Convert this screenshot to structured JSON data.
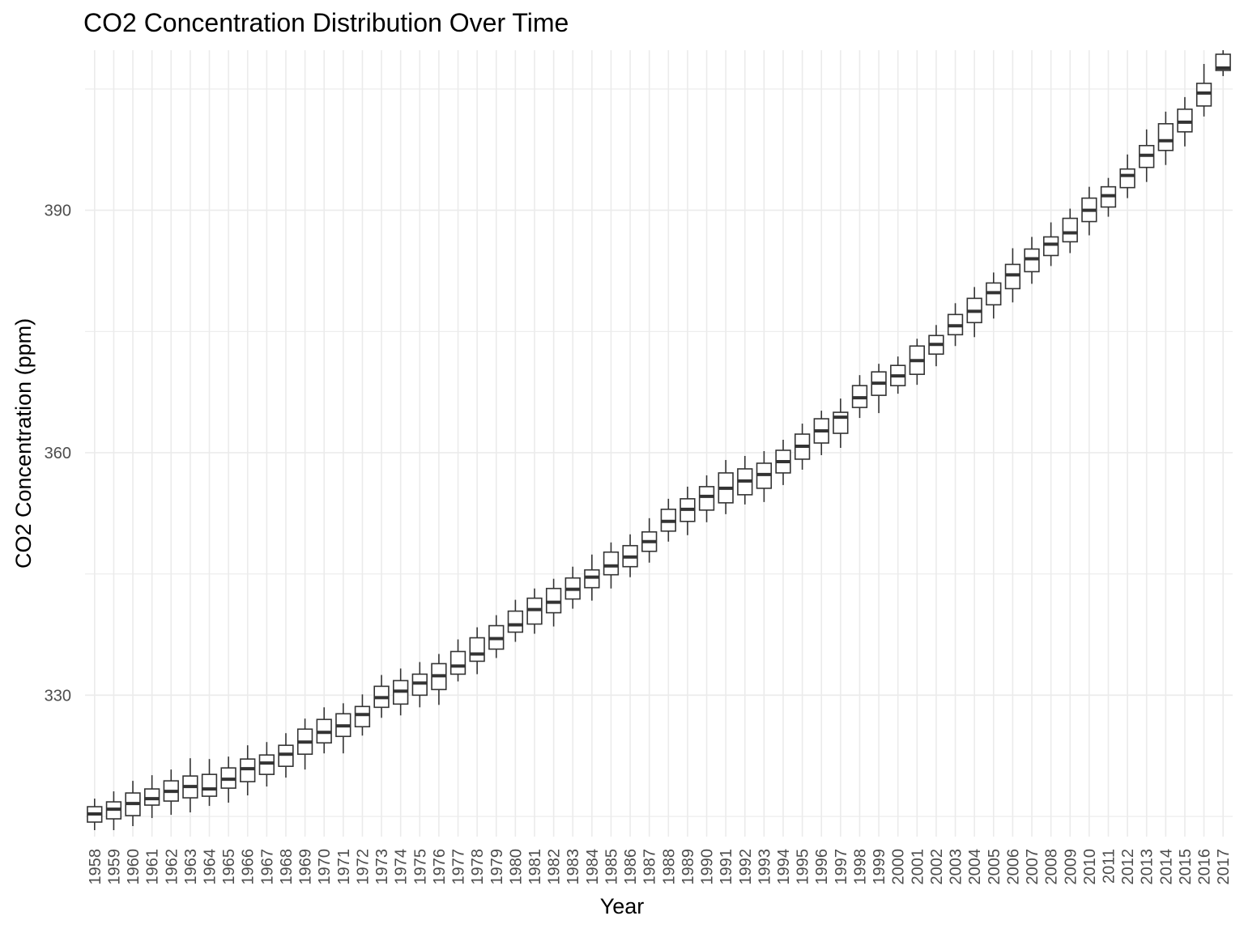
{
  "chart_data": {
    "type": "boxplot",
    "title": "CO2 Concentration Distribution Over Time",
    "xlabel": "Year",
    "ylabel": "CO2 Concentration (ppm)",
    "ylim": [
      312.5,
      409.8
    ],
    "y_ticks": [
      330,
      360,
      390
    ],
    "grid": true,
    "legend": "none",
    "colors": {
      "box_stroke": "#333333",
      "box_fill": "#ffffff",
      "grid": "#ebebeb",
      "tick_label": "#4d4d4d"
    },
    "categories": [
      "1958",
      "1959",
      "1960",
      "1961",
      "1962",
      "1963",
      "1964",
      "1965",
      "1966",
      "1967",
      "1968",
      "1969",
      "1970",
      "1971",
      "1972",
      "1973",
      "1974",
      "1975",
      "1976",
      "1977",
      "1978",
      "1979",
      "1980",
      "1981",
      "1982",
      "1983",
      "1984",
      "1985",
      "1986",
      "1987",
      "1988",
      "1989",
      "1990",
      "1991",
      "1992",
      "1993",
      "1994",
      "1995",
      "1996",
      "1997",
      "1998",
      "1999",
      "2000",
      "2001",
      "2002",
      "2003",
      "2004",
      "2005",
      "2006",
      "2007",
      "2008",
      "2009",
      "2010",
      "2011",
      "2012",
      "2013",
      "2014",
      "2015",
      "2016",
      "2017"
    ],
    "boxes": [
      {
        "min": 313.3,
        "q1": 314.3,
        "median": 315.3,
        "q3": 316.2,
        "max": 317.2
      },
      {
        "min": 313.3,
        "q1": 314.7,
        "median": 315.9,
        "q3": 316.8,
        "max": 318.1
      },
      {
        "min": 313.8,
        "q1": 315.1,
        "median": 316.6,
        "q3": 317.9,
        "max": 319.4
      },
      {
        "min": 314.8,
        "q1": 316.4,
        "median": 317.2,
        "q3": 318.4,
        "max": 320.1
      },
      {
        "min": 315.2,
        "q1": 316.9,
        "median": 318.1,
        "q3": 319.4,
        "max": 320.8
      },
      {
        "min": 315.5,
        "q1": 317.3,
        "median": 318.7,
        "q3": 320.0,
        "max": 322.2
      },
      {
        "min": 316.3,
        "q1": 317.5,
        "median": 318.4,
        "q3": 320.2,
        "max": 322.1
      },
      {
        "min": 316.7,
        "q1": 318.5,
        "median": 319.6,
        "q3": 321.0,
        "max": 322.4
      },
      {
        "min": 317.6,
        "q1": 319.3,
        "median": 320.9,
        "q3": 322.1,
        "max": 323.8
      },
      {
        "min": 318.7,
        "q1": 320.2,
        "median": 321.6,
        "q3": 322.6,
        "max": 324.2
      },
      {
        "min": 319.8,
        "q1": 321.2,
        "median": 322.7,
        "q3": 323.8,
        "max": 325.3
      },
      {
        "min": 320.8,
        "q1": 322.7,
        "median": 324.2,
        "q3": 325.8,
        "max": 327.1
      },
      {
        "min": 322.8,
        "q1": 324.1,
        "median": 325.4,
        "q3": 327.0,
        "max": 328.5
      },
      {
        "min": 322.8,
        "q1": 324.9,
        "median": 326.2,
        "q3": 327.7,
        "max": 329.0
      },
      {
        "min": 325.0,
        "q1": 326.1,
        "median": 327.6,
        "q3": 328.6,
        "max": 330.1
      },
      {
        "min": 327.2,
        "q1": 328.5,
        "median": 329.7,
        "q3": 331.1,
        "max": 332.5
      },
      {
        "min": 327.5,
        "q1": 328.9,
        "median": 330.5,
        "q3": 331.8,
        "max": 333.3
      },
      {
        "min": 328.5,
        "q1": 330.0,
        "median": 331.5,
        "q3": 332.6,
        "max": 334.1
      },
      {
        "min": 328.8,
        "q1": 330.7,
        "median": 332.4,
        "q3": 333.9,
        "max": 335.1
      },
      {
        "min": 331.7,
        "q1": 332.6,
        "median": 333.6,
        "q3": 335.4,
        "max": 336.9
      },
      {
        "min": 332.6,
        "q1": 334.2,
        "median": 335.1,
        "q3": 337.1,
        "max": 338.4
      },
      {
        "min": 334.6,
        "q1": 335.7,
        "median": 337.0,
        "q3": 338.6,
        "max": 339.9
      },
      {
        "min": 336.6,
        "q1": 337.8,
        "median": 338.7,
        "q3": 340.4,
        "max": 341.8
      },
      {
        "min": 337.6,
        "q1": 338.8,
        "median": 340.6,
        "q3": 342.0,
        "max": 343.2
      },
      {
        "min": 338.5,
        "q1": 340.2,
        "median": 341.5,
        "q3": 343.2,
        "max": 344.4
      },
      {
        "min": 340.7,
        "q1": 341.9,
        "median": 343.1,
        "q3": 344.5,
        "max": 345.9
      },
      {
        "min": 341.7,
        "q1": 343.3,
        "median": 344.6,
        "q3": 345.5,
        "max": 347.4
      },
      {
        "min": 343.2,
        "q1": 344.9,
        "median": 346.0,
        "q3": 347.7,
        "max": 348.9
      },
      {
        "min": 344.6,
        "q1": 345.9,
        "median": 347.1,
        "q3": 348.5,
        "max": 349.9
      },
      {
        "min": 346.4,
        "q1": 347.8,
        "median": 349.0,
        "q3": 350.2,
        "max": 351.9
      },
      {
        "min": 349.0,
        "q1": 350.3,
        "median": 351.5,
        "q3": 353.0,
        "max": 354.3
      },
      {
        "min": 349.8,
        "q1": 351.5,
        "median": 353.0,
        "q3": 354.3,
        "max": 355.8
      },
      {
        "min": 351.4,
        "q1": 352.9,
        "median": 354.6,
        "q3": 355.8,
        "max": 357.2
      },
      {
        "min": 352.4,
        "q1": 353.8,
        "median": 355.6,
        "q3": 357.5,
        "max": 359.1
      },
      {
        "min": 353.6,
        "q1": 354.8,
        "median": 356.5,
        "q3": 358.0,
        "max": 359.6
      },
      {
        "min": 353.9,
        "q1": 355.6,
        "median": 357.3,
        "q3": 358.7,
        "max": 360.2
      },
      {
        "min": 356.0,
        "q1": 357.5,
        "median": 358.9,
        "q3": 360.3,
        "max": 361.6
      },
      {
        "min": 357.9,
        "q1": 359.2,
        "median": 360.8,
        "q3": 362.3,
        "max": 363.6
      },
      {
        "min": 359.7,
        "q1": 361.2,
        "median": 362.7,
        "q3": 364.2,
        "max": 365.2
      },
      {
        "min": 360.6,
        "q1": 362.4,
        "median": 364.4,
        "q3": 365.0,
        "max": 366.7
      },
      {
        "min": 364.3,
        "q1": 365.6,
        "median": 366.8,
        "q3": 368.3,
        "max": 369.6
      },
      {
        "min": 364.9,
        "q1": 367.1,
        "median": 368.6,
        "q3": 370.0,
        "max": 371.0
      },
      {
        "min": 367.3,
        "q1": 368.3,
        "median": 369.5,
        "q3": 370.8,
        "max": 371.9
      },
      {
        "min": 368.4,
        "q1": 369.7,
        "median": 371.4,
        "q3": 373.2,
        "max": 374.1
      },
      {
        "min": 370.7,
        "q1": 372.2,
        "median": 373.4,
        "q3": 374.5,
        "max": 375.8
      },
      {
        "min": 373.2,
        "q1": 374.6,
        "median": 375.7,
        "q3": 377.1,
        "max": 378.5
      },
      {
        "min": 374.3,
        "q1": 376.1,
        "median": 377.5,
        "q3": 379.1,
        "max": 380.5
      },
      {
        "min": 376.6,
        "q1": 378.3,
        "median": 379.8,
        "q3": 381.0,
        "max": 382.3
      },
      {
        "min": 378.6,
        "q1": 380.3,
        "median": 382.0,
        "q3": 383.3,
        "max": 385.3
      },
      {
        "min": 380.9,
        "q1": 382.4,
        "median": 384.0,
        "q3": 385.2,
        "max": 386.7
      },
      {
        "min": 383.1,
        "q1": 384.4,
        "median": 385.8,
        "q3": 386.7,
        "max": 388.5
      },
      {
        "min": 384.7,
        "q1": 386.1,
        "median": 387.2,
        "q3": 389.0,
        "max": 390.2
      },
      {
        "min": 386.9,
        "q1": 388.6,
        "median": 390.0,
        "q3": 391.5,
        "max": 392.9
      },
      {
        "min": 389.2,
        "q1": 390.4,
        "median": 391.8,
        "q3": 392.9,
        "max": 394.0
      },
      {
        "min": 391.5,
        "q1": 392.8,
        "median": 394.3,
        "q3": 395.1,
        "max": 396.9
      },
      {
        "min": 393.5,
        "q1": 395.3,
        "median": 396.8,
        "q3": 398.0,
        "max": 400.0
      },
      {
        "min": 395.6,
        "q1": 397.4,
        "median": 398.6,
        "q3": 400.7,
        "max": 402.2
      },
      {
        "min": 397.9,
        "q1": 399.7,
        "median": 400.9,
        "q3": 402.5,
        "max": 404.0
      },
      {
        "min": 401.6,
        "q1": 402.9,
        "median": 404.5,
        "q3": 405.7,
        "max": 408.1
      },
      {
        "min": 406.6,
        "q1": 407.3,
        "median": 407.6,
        "q3": 409.3,
        "max": 409.8
      }
    ]
  }
}
